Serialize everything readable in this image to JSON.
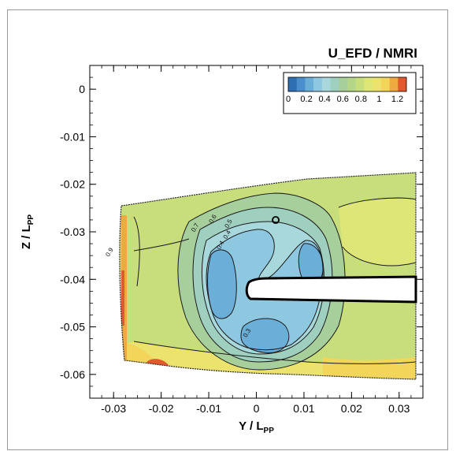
{
  "chart_data": {
    "type": "heatmap",
    "title": "U_EFD / NMRI",
    "xlabel": "Y / L",
    "xlabel_sub": "PP",
    "ylabel": "Z / L",
    "ylabel_sub": "PP",
    "xlim": [
      -0.035,
      0.035
    ],
    "ylim": [
      -0.065,
      0.005
    ],
    "x_ticks": [
      -0.03,
      -0.02,
      -0.01,
      0,
      0.01,
      0.02,
      0.03
    ],
    "x_tick_labels": [
      "-0.03",
      "-0.02",
      "-0.01",
      "0",
      "0.01",
      "0.02",
      "0.03"
    ],
    "y_ticks": [
      0,
      -0.01,
      -0.02,
      -0.03,
      -0.04,
      -0.05,
      -0.06
    ],
    "y_tick_labels": [
      "0",
      "-0.01",
      "-0.02",
      "-0.03",
      "-0.04",
      "-0.05",
      "-0.06"
    ],
    "legend": {
      "placement": "top-right",
      "range": [
        0,
        1.3
      ],
      "tick_values": [
        0,
        0.2,
        0.4,
        0.6,
        0.8,
        1,
        1.2
      ],
      "tick_labels": [
        "0",
        "0.2",
        "0.4",
        "0.6",
        "0.8",
        "1",
        "1.2"
      ],
      "colors": [
        "#2e6fb4",
        "#4a8fcc",
        "#6baed8",
        "#8ec8e0",
        "#a8d8dc",
        "#9fd0bf",
        "#a6cf9c",
        "#b5d689",
        "#c8de7c",
        "#dde677",
        "#ece36e",
        "#f3d55a",
        "#efaa3f",
        "#e2592d"
      ]
    },
    "contour_labels": [
      {
        "text": "0.9",
        "x": -0.0305,
        "y": -0.0345
      },
      {
        "text": "0.7",
        "x": -0.0125,
        "y": -0.0293
      },
      {
        "text": "0.6",
        "x": -0.0088,
        "y": -0.0275
      },
      {
        "text": "0.5",
        "x": -0.0055,
        "y": -0.0285
      },
      {
        "text": "0.4",
        "x": -0.0058,
        "y": -0.0308
      },
      {
        "text": "0.4",
        "x": -0.0072,
        "y": -0.033
      },
      {
        "text": "0.3",
        "x": -0.0016,
        "y": -0.0515
      }
    ]
  }
}
